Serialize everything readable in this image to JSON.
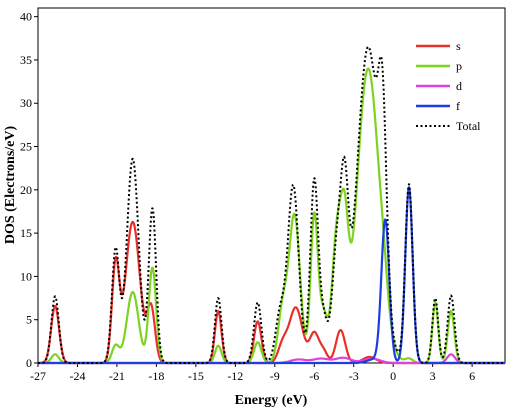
{
  "chart_data": {
    "type": "line",
    "xlabel": "Energy (eV)",
    "ylabel": "DOS (Electrons/eV)",
    "xlim": [
      -27,
      8.5
    ],
    "ylim": [
      0,
      41
    ],
    "xticks": [
      -27,
      -24,
      -21,
      -18,
      -15,
      -12,
      -9,
      -6,
      -3,
      0,
      3,
      6
    ],
    "yticks": [
      0,
      5,
      10,
      15,
      20,
      25,
      30,
      35,
      40
    ],
    "grid": false,
    "legend_position": "top-right",
    "series": [
      {
        "name": "s",
        "color": "#e8302a",
        "dash": "solid",
        "peaks": [
          [
            -25.7,
            6.6,
            0.3
          ],
          [
            -21.1,
            11.2,
            0.28
          ],
          [
            -19.8,
            16.3,
            0.55
          ],
          [
            -18.4,
            6.2,
            0.3
          ],
          [
            -13.3,
            6.0,
            0.25
          ],
          [
            -10.3,
            4.8,
            0.28
          ],
          [
            -8.4,
            2.0,
            0.35
          ],
          [
            -7.4,
            6.4,
            0.5
          ],
          [
            -6.0,
            3.4,
            0.35
          ],
          [
            -5.3,
            1.3,
            0.3
          ],
          [
            -4.0,
            3.8,
            0.35
          ],
          [
            -1.8,
            0.7,
            0.5
          ]
        ]
      },
      {
        "name": "p",
        "color": "#7ed321",
        "dash": "solid",
        "peaks": [
          [
            -25.7,
            1.0,
            0.28
          ],
          [
            -21.1,
            2.0,
            0.28
          ],
          [
            -19.8,
            8.2,
            0.45
          ],
          [
            -18.3,
            11.0,
            0.28
          ],
          [
            -13.3,
            2.0,
            0.25
          ],
          [
            -10.3,
            2.4,
            0.28
          ],
          [
            -8.4,
            6.0,
            0.35
          ],
          [
            -7.5,
            17.0,
            0.42
          ],
          [
            -6.0,
            17.0,
            0.28
          ],
          [
            -5.3,
            5.5,
            0.3
          ],
          [
            -4.3,
            14.0,
            0.35
          ],
          [
            -3.7,
            13.0,
            0.3
          ],
          [
            -1.9,
            34.0,
            0.85
          ],
          [
            -0.7,
            2.0,
            0.3
          ],
          [
            1.2,
            0.5,
            0.3
          ],
          [
            3.2,
            7.0,
            0.22
          ],
          [
            4.4,
            6.0,
            0.25
          ]
        ]
      },
      {
        "name": "d",
        "color": "#e040e0",
        "dash": "solid",
        "peaks": [
          [
            -7.2,
            0.4,
            0.6
          ],
          [
            -5.5,
            0.5,
            0.6
          ],
          [
            -3.8,
            0.6,
            0.6
          ],
          [
            -1.6,
            0.5,
            0.6
          ],
          [
            4.4,
            1.0,
            0.3
          ]
        ]
      },
      {
        "name": "f",
        "color": "#1b3fe0",
        "dash": "solid",
        "peaks": [
          [
            -0.6,
            16.5,
            0.3
          ],
          [
            1.2,
            20.3,
            0.28
          ],
          [
            -1.5,
            0.4,
            0.5
          ]
        ]
      },
      {
        "name": "Total",
        "color": "#000000",
        "dash": "dotted",
        "peaks": [
          [
            -25.7,
            7.7,
            0.28
          ],
          [
            -21.1,
            13.0,
            0.28
          ],
          [
            -19.8,
            23.6,
            0.45
          ],
          [
            -18.3,
            17.8,
            0.28
          ],
          [
            -13.3,
            7.5,
            0.25
          ],
          [
            -10.3,
            7.0,
            0.28
          ],
          [
            -8.6,
            5.5,
            0.35
          ],
          [
            -7.6,
            20.5,
            0.42
          ],
          [
            -6.0,
            21.0,
            0.3
          ],
          [
            -5.3,
            5.0,
            0.3
          ],
          [
            -4.3,
            12.5,
            0.35
          ],
          [
            -3.7,
            17.0,
            0.3
          ],
          [
            -1.9,
            36.5,
            0.85
          ],
          [
            -0.8,
            18.0,
            0.3
          ],
          [
            1.2,
            20.6,
            0.28
          ],
          [
            3.2,
            7.5,
            0.22
          ],
          [
            4.4,
            7.8,
            0.26
          ]
        ]
      }
    ]
  }
}
